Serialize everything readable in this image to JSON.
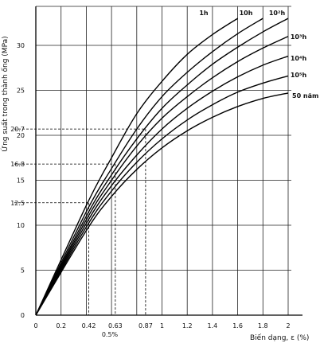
{
  "chart_data": {
    "type": "line",
    "xlabel": "Biến dạng, ε (%)",
    "ylabel": "Ứng suất trong thành ống (MPa)",
    "xlim": [
      0,
      2.1
    ],
    "ylim": [
      0,
      33
    ],
    "x_ticks": [
      0,
      0.2,
      0.42,
      0.63,
      0.87,
      1,
      1.2,
      1.4,
      1.6,
      1.8,
      2
    ],
    "x_tick_labels": [
      "0",
      "0.2",
      "0.42",
      "0.63",
      "0.87",
      "1",
      "1.2",
      "1.4",
      "1.6",
      "1.8",
      "2"
    ],
    "y_ticks": [
      0,
      5,
      10,
      12.5,
      15,
      16.8,
      20,
      20.7,
      25,
      30
    ],
    "y_tick_labels": [
      "0",
      "5",
      "10",
      "12.5",
      "15",
      "16.8",
      "20",
      "20.7",
      "25",
      "30"
    ],
    "x_note": "0.5%",
    "grid": true,
    "series": [
      {
        "name": "1h",
        "x": [
          0,
          0.4,
          0.6,
          0.8,
          1.0,
          1.2,
          1.4,
          1.6
        ],
        "y": [
          0,
          12.2,
          17.5,
          22.4,
          26.0,
          29.0,
          31.2,
          33.0
        ]
      },
      {
        "name": "10h",
        "x": [
          0,
          0.4,
          0.6,
          0.8,
          1.0,
          1.2,
          1.4,
          1.6,
          1.8
        ],
        "y": [
          0,
          11.5,
          16.3,
          20.7,
          24.3,
          27.0,
          29.3,
          31.3,
          33.0
        ]
      },
      {
        "name": "10²h",
        "x": [
          0,
          0.4,
          0.6,
          0.8,
          1.0,
          1.2,
          1.4,
          1.6,
          1.8,
          2.0
        ],
        "y": [
          0,
          11.0,
          15.6,
          19.6,
          23.0,
          25.6,
          27.9,
          29.8,
          31.5,
          33.0
        ]
      },
      {
        "name": "10³h",
        "x": [
          0,
          0.4,
          0.6,
          0.8,
          1.0,
          1.2,
          1.4,
          1.6,
          1.8,
          2.0
        ],
        "y": [
          0,
          10.6,
          15.0,
          18.8,
          21.9,
          24.3,
          26.4,
          28.2,
          29.7,
          31.0
        ]
      },
      {
        "name": "10⁴h",
        "x": [
          0,
          0.4,
          0.6,
          0.8,
          1.0,
          1.2,
          1.4,
          1.6,
          1.8,
          2.0
        ],
        "y": [
          0,
          10.2,
          14.4,
          17.8,
          20.7,
          23.0,
          24.9,
          26.5,
          27.8,
          28.8
        ]
      },
      {
        "name": "10⁵h",
        "x": [
          0,
          0.4,
          0.6,
          0.8,
          1.0,
          1.2,
          1.4,
          1.6,
          1.8,
          2.0
        ],
        "y": [
          0,
          9.8,
          13.8,
          17.0,
          19.6,
          21.7,
          23.4,
          24.8,
          25.8,
          26.6
        ]
      },
      {
        "name": "50 năm",
        "x": [
          0,
          0.4,
          0.6,
          0.8,
          1.0,
          1.2,
          1.4,
          1.6,
          1.8,
          2.0
        ],
        "y": [
          0,
          9.4,
          13.2,
          16.2,
          18.6,
          20.5,
          22.0,
          23.2,
          24.1,
          24.7
        ]
      }
    ],
    "reference_lines": [
      {
        "y": 20.7,
        "x": 0.87
      },
      {
        "y": 16.8,
        "x": 0.63
      },
      {
        "y": 12.5,
        "x": 0.42
      }
    ]
  }
}
